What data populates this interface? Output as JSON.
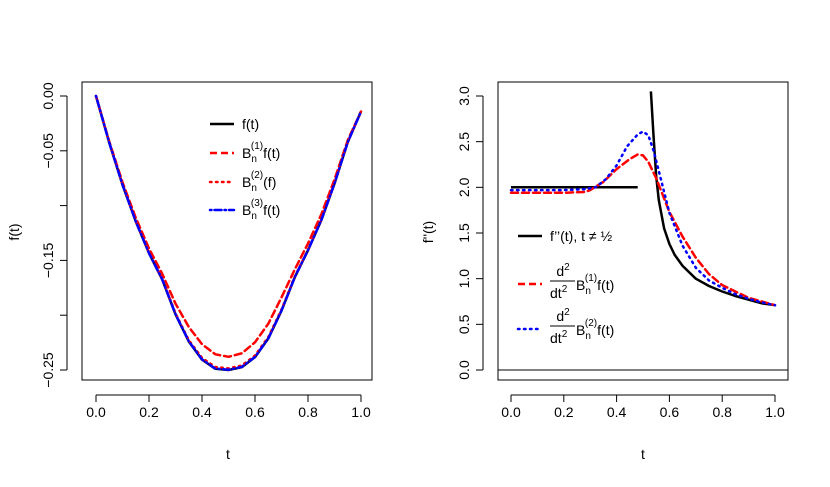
{
  "chart_data": [
    {
      "type": "line",
      "xlabel": "t",
      "ylabel": "f(t)",
      "xlim": [
        0,
        1
      ],
      "ylim": [
        -0.25,
        0
      ],
      "x_ticks": [
        "0.0",
        "0.2",
        "0.4",
        "0.6",
        "0.8",
        "1.0"
      ],
      "y_ticks": [
        "0.00",
        "−0.05",
        "−0.15",
        "−0.25"
      ],
      "x_tick_values": [
        0,
        0.2,
        0.4,
        0.6,
        0.8,
        1.0
      ],
      "y_tick_values": [
        0,
        -0.05,
        -0.15,
        -0.25
      ],
      "y_minor_tick_values": [
        -0.1,
        -0.2
      ],
      "grid": false,
      "legend_position": "top-right",
      "series": [
        {
          "name": "f(t)",
          "color": "#000000",
          "linestyle": "solid",
          "x": [
            0,
            0.05,
            0.1,
            0.15,
            0.2,
            0.25,
            0.3,
            0.35,
            0.4,
            0.45,
            0.5,
            0.55,
            0.6,
            0.65,
            0.7,
            0.75,
            0.8,
            0.85,
            0.9,
            0.95,
            1.0
          ],
          "y": [
            0,
            -0.0428,
            -0.081,
            -0.1145,
            -0.1434,
            -0.1676,
            -0.1992,
            -0.224,
            -0.2405,
            -0.2489,
            -0.25,
            -0.2474,
            -0.2382,
            -0.2213,
            -0.1959,
            -0.1653,
            -0.1408,
            -0.1133,
            -0.0799,
            -0.042,
            -0.0141
          ]
        },
        {
          "name": "Bn(1)f(t)",
          "color": "#ff0000",
          "linestyle": "dashed",
          "x": [
            0,
            0.05,
            0.1,
            0.15,
            0.2,
            0.25,
            0.3,
            0.35,
            0.4,
            0.45,
            0.5,
            0.55,
            0.6,
            0.65,
            0.7,
            0.75,
            0.8,
            0.85,
            0.9,
            0.95,
            1.0
          ],
          "y": [
            0,
            -0.0416,
            -0.0787,
            -0.1112,
            -0.1391,
            -0.1624,
            -0.1894,
            -0.2108,
            -0.2265,
            -0.2357,
            -0.238,
            -0.2348,
            -0.2247,
            -0.2078,
            -0.1838,
            -0.1582,
            -0.1345,
            -0.108,
            -0.0762,
            -0.0402,
            -0.0141
          ]
        },
        {
          "name": "Bn(2)(f)",
          "color": "#ff0000",
          "linestyle": "dotted",
          "x": [
            0,
            0.05,
            0.1,
            0.15,
            0.2,
            0.25,
            0.3,
            0.35,
            0.4,
            0.45,
            0.5,
            0.55,
            0.6,
            0.65,
            0.7,
            0.75,
            0.8,
            0.85,
            0.9,
            0.95,
            1.0
          ],
          "y": [
            0,
            -0.0427,
            -0.0808,
            -0.1142,
            -0.143,
            -0.1671,
            -0.1983,
            -0.2228,
            -0.239,
            -0.2473,
            -0.2485,
            -0.2459,
            -0.2368,
            -0.22,
            -0.1948,
            -0.1646,
            -0.1402,
            -0.1128,
            -0.0796,
            -0.0419,
            -0.0141
          ]
        },
        {
          "name": "Bn(3)f(t)",
          "color": "#0000ff",
          "linestyle": "dashdot",
          "x": [
            0,
            0.05,
            0.1,
            0.15,
            0.2,
            0.25,
            0.3,
            0.35,
            0.4,
            0.45,
            0.5,
            0.55,
            0.6,
            0.65,
            0.7,
            0.75,
            0.8,
            0.85,
            0.9,
            0.95,
            1.0
          ],
          "y": [
            0,
            -0.0427,
            -0.0809,
            -0.1144,
            -0.1433,
            -0.1675,
            -0.199,
            -0.2238,
            -0.2403,
            -0.2487,
            -0.2498,
            -0.2472,
            -0.2381,
            -0.2212,
            -0.1958,
            -0.1652,
            -0.1407,
            -0.1132,
            -0.0798,
            -0.042,
            -0.0141
          ]
        }
      ]
    },
    {
      "type": "line",
      "xlabel": "t",
      "ylabel": "f''(t)",
      "xlim": [
        0,
        1
      ],
      "ylim": [
        0,
        3
      ],
      "x_ticks": [
        "0.0",
        "0.2",
        "0.4",
        "0.6",
        "0.8",
        "1.0"
      ],
      "y_ticks": [
        "0.0",
        "0.5",
        "1.0",
        "1.5",
        "2.0",
        "2.5",
        "3.0"
      ],
      "x_tick_values": [
        0,
        0.2,
        0.4,
        0.6,
        0.8,
        1.0
      ],
      "y_tick_values": [
        0,
        0.5,
        1.0,
        1.5,
        2.0,
        2.5,
        3.0
      ],
      "hline": 0,
      "grid": false,
      "legend_position": "bottom-left",
      "series": [
        {
          "name": "f''(t), t ≠ ½",
          "color": "#000000",
          "linestyle": "solid",
          "segments": [
            {
              "x": [
                0,
                0.48
              ],
              "y": [
                2,
                2
              ]
            },
            {
              "x": [
                0.53,
                0.54,
                0.55,
                0.56,
                0.58,
                0.6,
                0.62,
                0.65,
                0.7,
                0.75,
                0.8,
                0.85,
                0.9,
                0.95,
                1.0
              ],
              "y": [
                3.05,
                2.55,
                2.12,
                1.86,
                1.55,
                1.38,
                1.26,
                1.14,
                1.0,
                0.92,
                0.86,
                0.81,
                0.77,
                0.73,
                0.71
              ]
            }
          ]
        },
        {
          "name": "d²/dt² Bn(1)f(t)",
          "color": "#ff0000",
          "linestyle": "dashed",
          "x": [
            0,
            0.1,
            0.2,
            0.28,
            0.3,
            0.35,
            0.4,
            0.45,
            0.48,
            0.5,
            0.52,
            0.55,
            0.6,
            0.65,
            0.7,
            0.75,
            0.8,
            0.85,
            0.9,
            0.95,
            1.0
          ],
          "y": [
            1.94,
            1.94,
            1.94,
            1.95,
            1.97,
            2.06,
            2.2,
            2.31,
            2.36,
            2.35,
            2.28,
            2.1,
            1.73,
            1.46,
            1.23,
            1.05,
            0.93,
            0.86,
            0.79,
            0.75,
            0.71
          ]
        },
        {
          "name": "d²/dt² Bn(2)f(t)",
          "color": "#0000ff",
          "linestyle": "dotted",
          "x": [
            0,
            0.1,
            0.2,
            0.28,
            0.32,
            0.36,
            0.4,
            0.44,
            0.48,
            0.5,
            0.52,
            0.54,
            0.56,
            0.6,
            0.65,
            0.7,
            0.75,
            0.8,
            0.85,
            0.9,
            0.95,
            1.0
          ],
          "y": [
            1.97,
            1.97,
            1.97,
            1.98,
            2.0,
            2.09,
            2.24,
            2.45,
            2.58,
            2.61,
            2.57,
            2.4,
            2.18,
            1.72,
            1.36,
            1.12,
            0.98,
            0.9,
            0.83,
            0.78,
            0.74,
            0.71
          ]
        }
      ]
    }
  ]
}
